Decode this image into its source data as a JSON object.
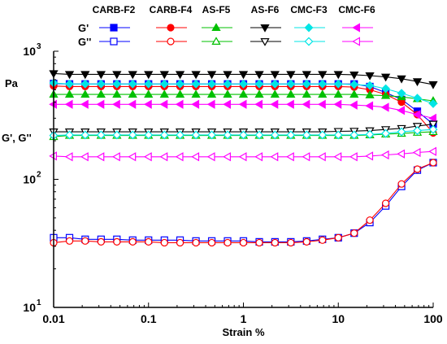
{
  "chart_data": {
    "type": "line",
    "xlabel": "Strain %",
    "ylabel": "G', G''",
    "yunit": "Pa",
    "xscale": "log",
    "yscale": "log",
    "xlim": [
      0.01,
      100
    ],
    "ylim": [
      10,
      1000
    ],
    "x_ticks": [
      0.01,
      0.1,
      1,
      10,
      100
    ],
    "x_tick_labels": [
      "0.01",
      "0.1",
      "1",
      "10",
      "100"
    ],
    "y_ticks": [
      10,
      100,
      1000
    ],
    "y_tick_labels": [
      {
        "base": "10",
        "exp": "1"
      },
      {
        "base": "10",
        "exp": "2"
      },
      {
        "base": "10",
        "exp": "3"
      }
    ],
    "legend": {
      "placement": "top",
      "row_labels": [
        "G'",
        "G''"
      ],
      "columns": [
        "CARB-F2",
        "CARB-F4",
        "AS-F5",
        "AS-F6",
        "CMC-F3",
        "CMC-F6"
      ]
    },
    "x": [
      0.01,
      0.0147,
      0.0215,
      0.0316,
      0.0464,
      0.0681,
      0.1,
      0.147,
      0.215,
      0.316,
      0.464,
      0.681,
      1,
      1.47,
      2.15,
      3.16,
      4.64,
      6.81,
      10,
      14.7,
      21.5,
      31.6,
      46.4,
      68.1,
      100
    ],
    "series": [
      {
        "name": "CARB-F2",
        "modulus": "G'",
        "marker": "square",
        "filled": true,
        "color": "#0000ff",
        "values": [
          560,
          555,
          555,
          555,
          555,
          555,
          555,
          555,
          555,
          555,
          555,
          555,
          555,
          555,
          555,
          555,
          555,
          555,
          555,
          555,
          530,
          475,
          420,
          340,
          270
        ]
      },
      {
        "name": "CARB-F4",
        "modulus": "G'",
        "marker": "circle",
        "filled": true,
        "color": "#ff0000",
        "values": [
          535,
          530,
          530,
          530,
          530,
          530,
          530,
          530,
          530,
          530,
          530,
          530,
          530,
          530,
          530,
          530,
          530,
          530,
          530,
          525,
          500,
          460,
          400,
          320,
          230
        ]
      },
      {
        "name": "AS-F5",
        "modulus": "G'",
        "marker": "triangle-up",
        "filled": true,
        "color": "#00c000",
        "values": [
          460,
          460,
          460,
          460,
          460,
          460,
          460,
          460,
          460,
          460,
          460,
          460,
          460,
          460,
          460,
          460,
          460,
          460,
          460,
          460,
          455,
          450,
          440,
          425,
          410
        ]
      },
      {
        "name": "AS-F6",
        "modulus": "G'",
        "marker": "triangle-down",
        "filled": true,
        "color": "#000000",
        "values": [
          670,
          660,
          660,
          660,
          660,
          660,
          660,
          660,
          660,
          660,
          660,
          660,
          660,
          660,
          660,
          660,
          660,
          660,
          660,
          655,
          645,
          630,
          610,
          580,
          550
        ]
      },
      {
        "name": "CMC-F3",
        "modulus": "G'",
        "marker": "diamond",
        "filled": true,
        "color": "#00e5e5",
        "values": [
          565,
          555,
          555,
          555,
          555,
          555,
          555,
          555,
          555,
          555,
          555,
          555,
          555,
          555,
          555,
          555,
          555,
          555,
          555,
          550,
          540,
          510,
          470,
          430,
          390
        ]
      },
      {
        "name": "CMC-F6",
        "modulus": "G'",
        "marker": "triangle-left",
        "filled": true,
        "color": "#ff00ff",
        "values": [
          385,
          385,
          385,
          385,
          385,
          385,
          385,
          385,
          385,
          385,
          385,
          385,
          385,
          385,
          385,
          385,
          385,
          385,
          385,
          380,
          375,
          365,
          345,
          320,
          300
        ]
      },
      {
        "name": "CARB-F2",
        "modulus": "G''",
        "marker": "square",
        "filled": false,
        "color": "#0000ff",
        "values": [
          35,
          35,
          34,
          34,
          34,
          33.5,
          33.5,
          33.5,
          33.5,
          33,
          33,
          33,
          33,
          32.5,
          32.5,
          32.5,
          33,
          34,
          35,
          38,
          46,
          62,
          88,
          118,
          135
        ]
      },
      {
        "name": "CARB-F4",
        "modulus": "G''",
        "marker": "circle",
        "filled": false,
        "color": "#ff0000",
        "values": [
          32,
          33,
          33,
          32.5,
          32.5,
          32.5,
          32.5,
          32,
          32,
          32,
          32,
          32,
          32,
          32,
          32,
          32,
          32.5,
          33.5,
          35,
          38,
          48,
          65,
          92,
          120,
          135
        ]
      },
      {
        "name": "AS-F5",
        "modulus": "G''",
        "marker": "triangle-up",
        "filled": false,
        "color": "#00c000",
        "values": [
          215,
          220,
          220,
          220,
          220,
          220,
          220,
          220,
          220,
          220,
          220,
          220,
          220,
          220,
          220,
          220,
          220,
          220,
          220,
          220,
          222,
          225,
          228,
          232,
          235
        ]
      },
      {
        "name": "AS-F6",
        "modulus": "G''",
        "marker": "triangle-down",
        "filled": false,
        "color": "#000000",
        "values": [
          235,
          235,
          235,
          235,
          235,
          235,
          235,
          235,
          235,
          235,
          235,
          235,
          235,
          235,
          235,
          235,
          235,
          235,
          237,
          238,
          240,
          245,
          250,
          260,
          270
        ]
      },
      {
        "name": "CMC-F3",
        "modulus": "G''",
        "marker": "diamond",
        "filled": false,
        "color": "#00e5e5",
        "values": [
          220,
          222,
          222,
          222,
          222,
          222,
          222,
          222,
          222,
          222,
          222,
          222,
          222,
          222,
          222,
          222,
          222,
          222,
          222,
          222,
          224,
          228,
          235,
          240,
          245
        ]
      },
      {
        "name": "CMC-F6",
        "modulus": "G''",
        "marker": "triangle-left",
        "filled": false,
        "color": "#ff00ff",
        "values": [
          152,
          150,
          150,
          150,
          150,
          150,
          150,
          150,
          150,
          150,
          150,
          150,
          150,
          150,
          150,
          150,
          150,
          150,
          150,
          150,
          152,
          155,
          158,
          162,
          165
        ]
      }
    ]
  }
}
